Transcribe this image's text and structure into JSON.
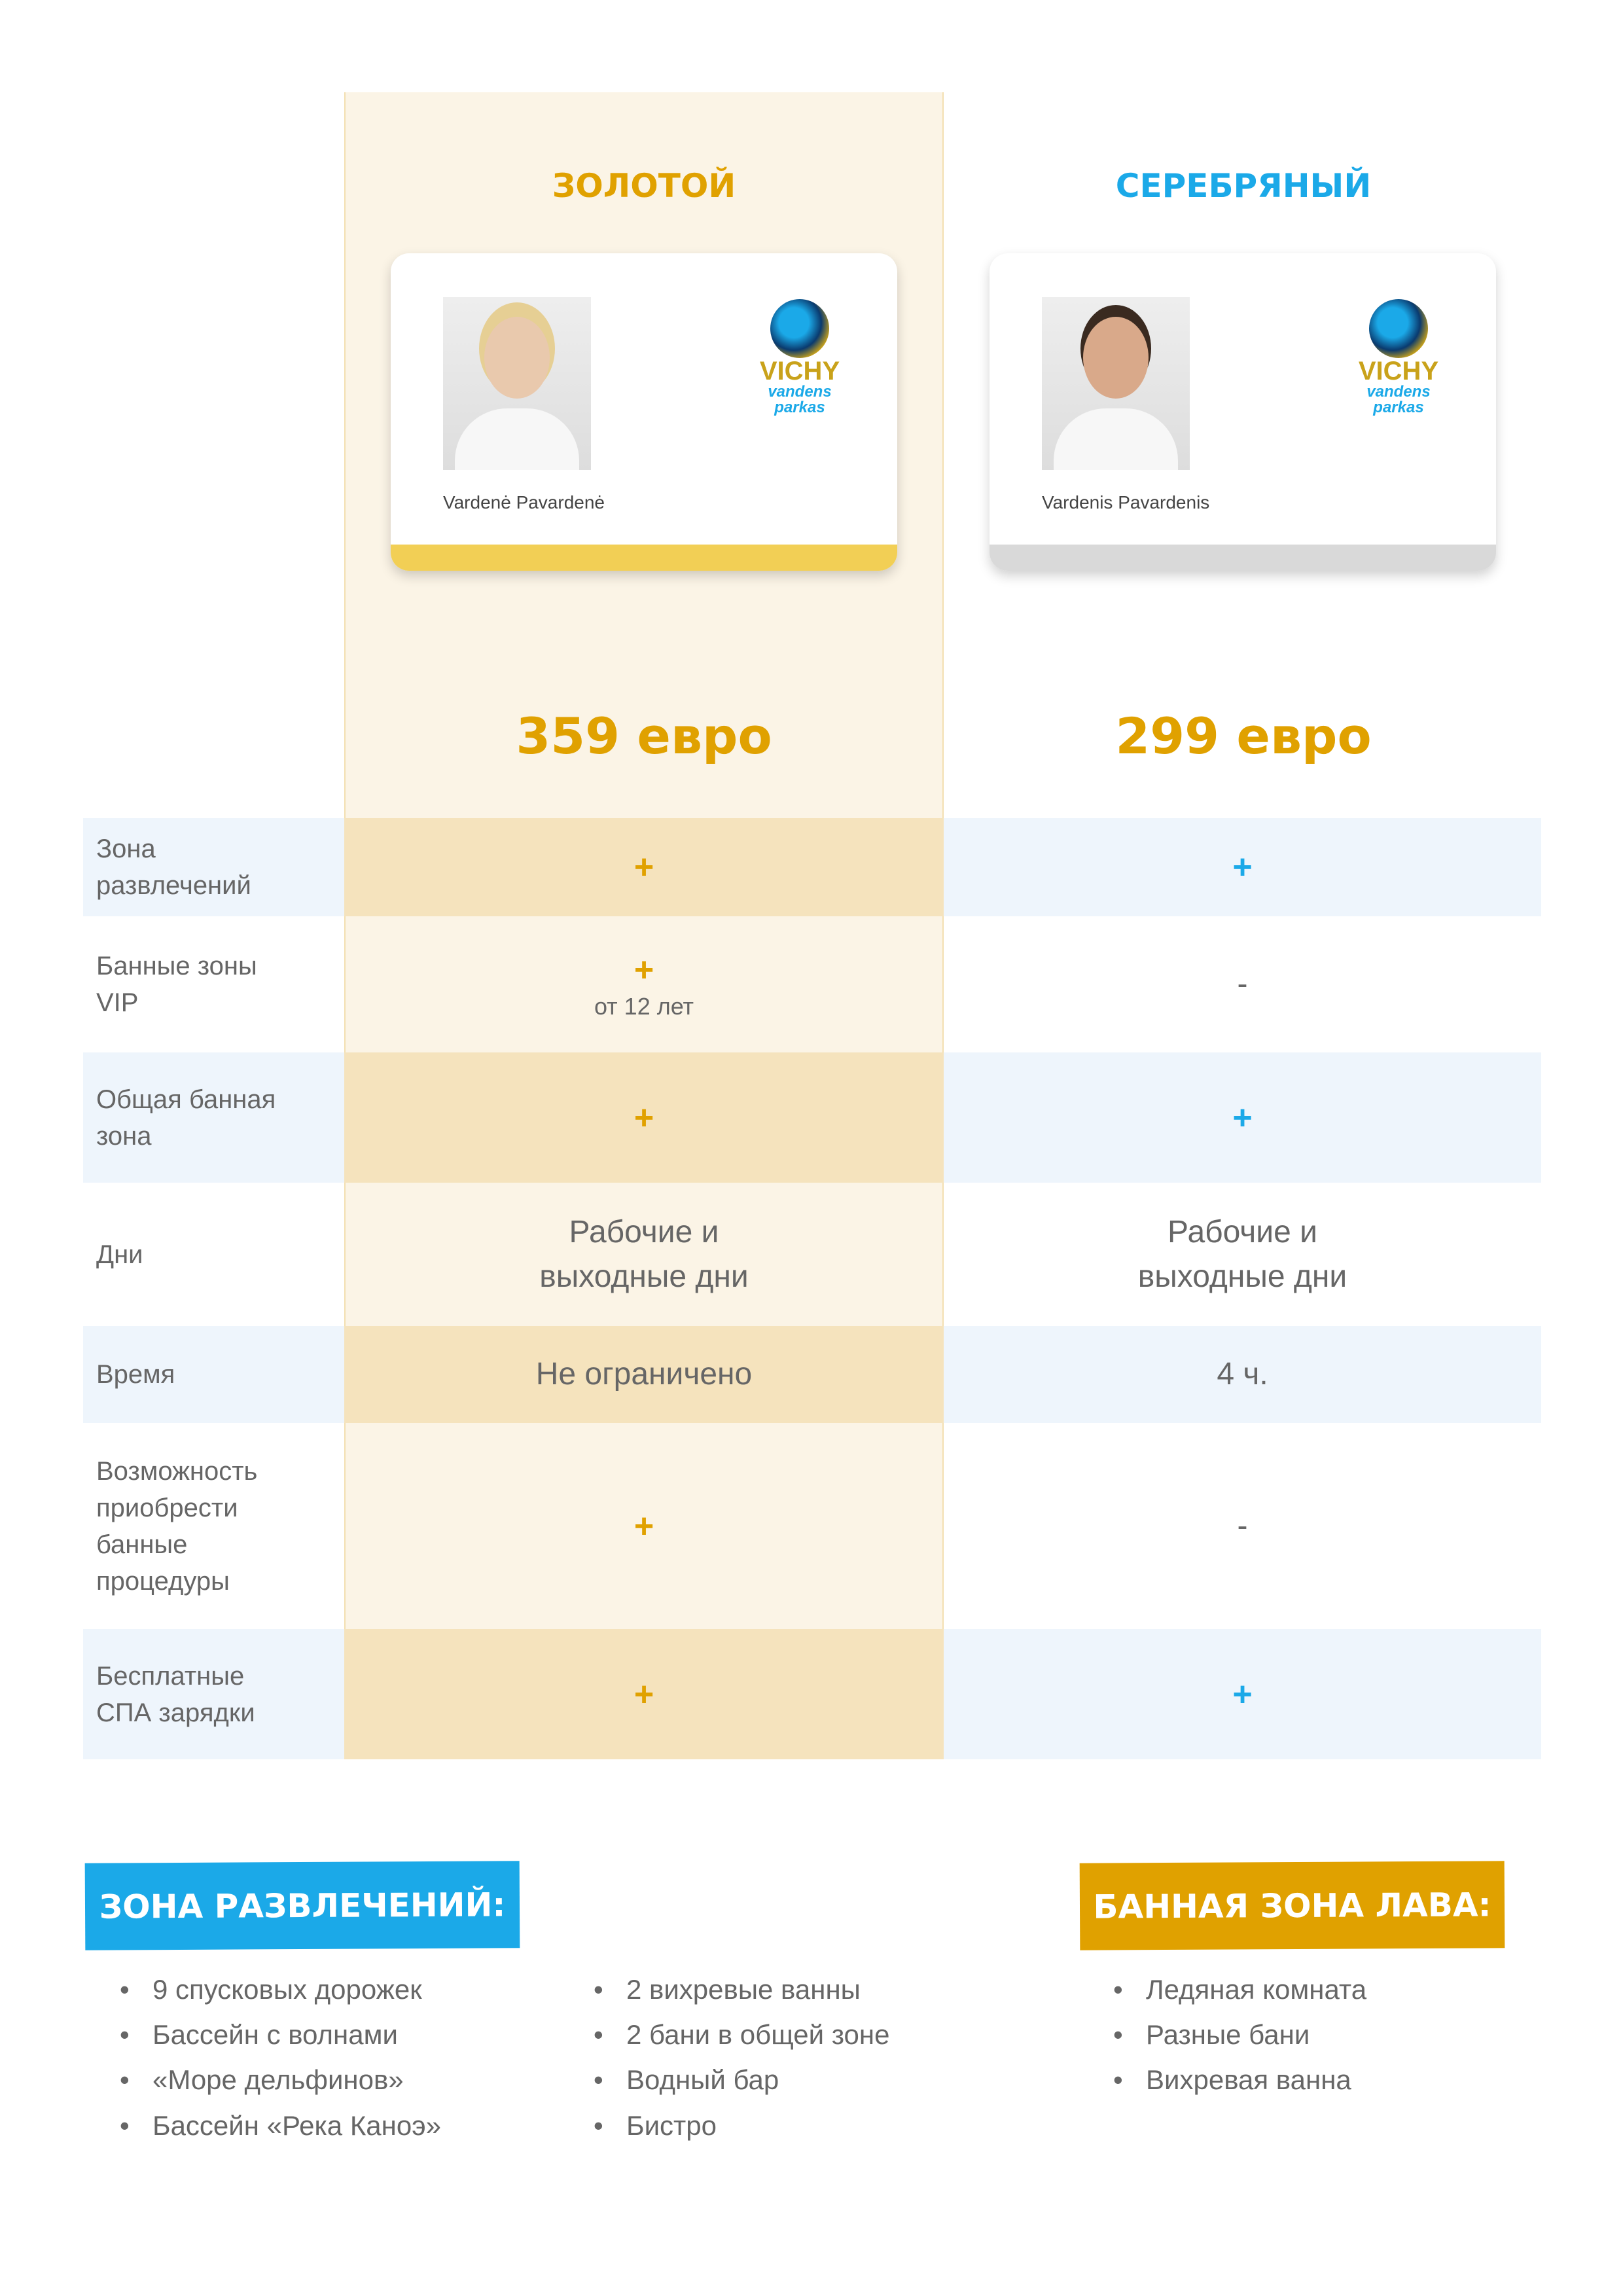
{
  "colors": {
    "gold": "#e0a100",
    "silver_title": "#1ba9e8",
    "gold_bg": "#fbf4e6",
    "gold_row": "#f5e3bd",
    "blue_row": "#eef5fc",
    "gold_stripe": "#f2cf55",
    "silver_stripe": "#d9d9d9"
  },
  "plans": [
    {
      "title": "ЗОЛОТОЙ",
      "card_name": "Vardenė Pavardenė",
      "logo_top": "VICHY",
      "logo_bottom": "vandens parkas",
      "price": "359 евро"
    },
    {
      "title": "СЕРЕБРЯНЫЙ",
      "card_name": "Vardenis Pavardenis",
      "logo_top": "VICHY",
      "logo_bottom": "vandens parkas",
      "price": "299 евро"
    }
  ],
  "rows": [
    {
      "label": "Зона развлечений",
      "gold": "+",
      "gold_sub": "",
      "silver": "+",
      "shaded": true
    },
    {
      "label": "Банные зоны VIP",
      "gold": "+",
      "gold_sub": "от 12 лет",
      "silver": "-",
      "shaded": false
    },
    {
      "label": "Общая банная зона",
      "gold": "+",
      "gold_sub": "",
      "silver": "+",
      "shaded": true
    },
    {
      "label": "Дни",
      "gold": "Рабочие и выходные дни",
      "gold_sub": "",
      "silver": "Рабочие и выходные дни",
      "shaded": false
    },
    {
      "label": "Время",
      "gold": "Не ограничено",
      "gold_sub": "",
      "silver": "4 ч.",
      "shaded": true
    },
    {
      "label": "Возможность приобрести банные процедуры",
      "gold": "+",
      "gold_sub": "",
      "silver": "-",
      "shaded": false
    },
    {
      "label": "Бесплатные СПА зарядки",
      "gold": "+",
      "gold_sub": "",
      "silver": "+",
      "shaded": true
    }
  ],
  "sections": {
    "fun": {
      "title": "ЗОНА РАЗВЛЕЧЕНИЙ:",
      "col1": [
        "9 спусковых дорожек",
        "Бассейн с волнами",
        "«Море дельфинов»",
        "Бассейн «Река Каноэ»"
      ],
      "col2": [
        "2 вихревые ванны",
        "2 бани в общей зоне",
        "Водный бар",
        "Бистро"
      ]
    },
    "lava": {
      "title": "БАННАЯ ЗОНА ЛАВА:",
      "items": [
        "Ледяная комната",
        "Разные бани",
        "Вихревая ванна"
      ]
    }
  }
}
